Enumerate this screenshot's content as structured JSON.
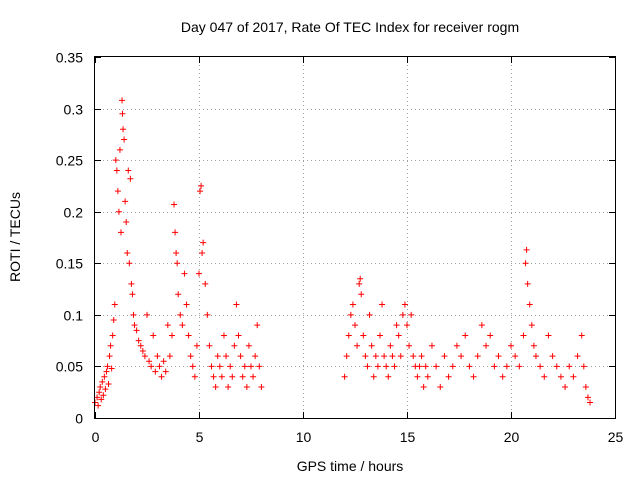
{
  "chart_data": {
    "type": "scatter",
    "title": "Day 047 of 2017, Rate Of TEC Index for receiver rogm",
    "xlabel": "GPS time / hours",
    "ylabel": "ROTI / TECUs",
    "xlim": [
      0,
      25
    ],
    "ylim": [
      0,
      0.35
    ],
    "xticks": [
      0,
      5,
      10,
      15,
      20,
      25
    ],
    "xtick_labels": [
      "0",
      "5",
      "10",
      "15",
      "20",
      "25"
    ],
    "yticks": [
      0,
      0.05,
      0.1,
      0.15,
      0.2,
      0.25,
      0.3,
      0.35
    ],
    "ytick_labels": [
      "0",
      "0.05",
      "0.1",
      "0.15",
      "0.2",
      "0.25",
      "0.3",
      "0.35"
    ],
    "grid": true,
    "marker": "+",
    "color": "#ff0000",
    "series": [
      {
        "name": "ROTI",
        "points": [
          [
            0.0,
            0.015
          ],
          [
            0.1,
            0.02
          ],
          [
            0.15,
            0.012
          ],
          [
            0.2,
            0.025
          ],
          [
            0.25,
            0.03
          ],
          [
            0.3,
            0.018
          ],
          [
            0.35,
            0.035
          ],
          [
            0.4,
            0.022
          ],
          [
            0.45,
            0.04
          ],
          [
            0.5,
            0.028
          ],
          [
            0.55,
            0.045
          ],
          [
            0.6,
            0.05
          ],
          [
            0.65,
            0.033
          ],
          [
            0.7,
            0.06
          ],
          [
            0.75,
            0.07
          ],
          [
            0.8,
            0.048
          ],
          [
            0.85,
            0.08
          ],
          [
            0.9,
            0.095
          ],
          [
            0.95,
            0.11
          ],
          [
            1.0,
            0.25
          ],
          [
            1.05,
            0.24
          ],
          [
            1.1,
            0.22
          ],
          [
            1.15,
            0.2
          ],
          [
            1.2,
            0.26
          ],
          [
            1.25,
            0.18
          ],
          [
            1.3,
            0.308
          ],
          [
            1.32,
            0.295
          ],
          [
            1.35,
            0.28
          ],
          [
            1.4,
            0.27
          ],
          [
            1.45,
            0.21
          ],
          [
            1.5,
            0.19
          ],
          [
            1.55,
            0.16
          ],
          [
            1.6,
            0.24
          ],
          [
            1.65,
            0.15
          ],
          [
            1.7,
            0.232
          ],
          [
            1.75,
            0.13
          ],
          [
            1.8,
            0.12
          ],
          [
            1.85,
            0.1
          ],
          [
            1.9,
            0.09
          ],
          [
            2.0,
            0.085
          ],
          [
            2.1,
            0.075
          ],
          [
            2.2,
            0.07
          ],
          [
            2.3,
            0.065
          ],
          [
            2.4,
            0.06
          ],
          [
            2.5,
            0.1
          ],
          [
            2.6,
            0.055
          ],
          [
            2.7,
            0.05
          ],
          [
            2.8,
            0.08
          ],
          [
            2.9,
            0.045
          ],
          [
            3.0,
            0.06
          ],
          [
            3.1,
            0.05
          ],
          [
            3.2,
            0.04
          ],
          [
            3.3,
            0.055
          ],
          [
            3.4,
            0.045
          ],
          [
            3.5,
            0.09
          ],
          [
            3.6,
            0.06
          ],
          [
            3.7,
            0.08
          ],
          [
            3.8,
            0.207
          ],
          [
            3.85,
            0.18
          ],
          [
            3.9,
            0.16
          ],
          [
            3.95,
            0.15
          ],
          [
            4.0,
            0.12
          ],
          [
            4.1,
            0.1
          ],
          [
            4.2,
            0.09
          ],
          [
            4.3,
            0.14
          ],
          [
            4.4,
            0.11
          ],
          [
            4.5,
            0.08
          ],
          [
            4.6,
            0.06
          ],
          [
            4.7,
            0.05
          ],
          [
            4.8,
            0.04
          ],
          [
            4.9,
            0.07
          ],
          [
            5.0,
            0.14
          ],
          [
            5.05,
            0.22
          ],
          [
            5.1,
            0.225
          ],
          [
            5.15,
            0.16
          ],
          [
            5.2,
            0.17
          ],
          [
            5.3,
            0.13
          ],
          [
            5.4,
            0.1
          ],
          [
            5.5,
            0.07
          ],
          [
            5.6,
            0.05
          ],
          [
            5.7,
            0.04
          ],
          [
            5.8,
            0.03
          ],
          [
            5.9,
            0.06
          ],
          [
            6.0,
            0.05
          ],
          [
            6.1,
            0.04
          ],
          [
            6.2,
            0.08
          ],
          [
            6.3,
            0.06
          ],
          [
            6.4,
            0.03
          ],
          [
            6.5,
            0.05
          ],
          [
            6.6,
            0.04
          ],
          [
            6.7,
            0.07
          ],
          [
            6.8,
            0.11
          ],
          [
            6.9,
            0.08
          ],
          [
            7.0,
            0.06
          ],
          [
            7.1,
            0.04
          ],
          [
            7.2,
            0.05
          ],
          [
            7.3,
            0.03
          ],
          [
            7.4,
            0.07
          ],
          [
            7.5,
            0.05
          ],
          [
            7.6,
            0.04
          ],
          [
            7.7,
            0.06
          ],
          [
            7.8,
            0.09
          ],
          [
            7.9,
            0.05
          ],
          [
            8.0,
            0.03
          ],
          [
            12.0,
            0.04
          ],
          [
            12.1,
            0.06
          ],
          [
            12.2,
            0.08
          ],
          [
            12.3,
            0.1
          ],
          [
            12.4,
            0.11
          ],
          [
            12.5,
            0.09
          ],
          [
            12.6,
            0.07
          ],
          [
            12.7,
            0.13
          ],
          [
            12.75,
            0.135
          ],
          [
            12.8,
            0.12
          ],
          [
            12.9,
            0.08
          ],
          [
            13.0,
            0.06
          ],
          [
            13.1,
            0.05
          ],
          [
            13.2,
            0.1
          ],
          [
            13.3,
            0.07
          ],
          [
            13.4,
            0.04
          ],
          [
            13.5,
            0.06
          ],
          [
            13.6,
            0.05
          ],
          [
            13.7,
            0.08
          ],
          [
            13.8,
            0.11
          ],
          [
            13.9,
            0.06
          ],
          [
            14.0,
            0.05
          ],
          [
            14.1,
            0.04
          ],
          [
            14.2,
            0.07
          ],
          [
            14.3,
            0.06
          ],
          [
            14.4,
            0.05
          ],
          [
            14.5,
            0.09
          ],
          [
            14.6,
            0.08
          ],
          [
            14.7,
            0.06
          ],
          [
            14.8,
            0.1
          ],
          [
            14.9,
            0.11
          ],
          [
            15.0,
            0.09
          ],
          [
            15.1,
            0.07
          ],
          [
            15.2,
            0.1
          ],
          [
            15.3,
            0.06
          ],
          [
            15.4,
            0.05
          ],
          [
            15.5,
            0.04
          ],
          [
            15.6,
            0.05
          ],
          [
            15.7,
            0.06
          ],
          [
            15.8,
            0.03
          ],
          [
            15.9,
            0.05
          ],
          [
            16.0,
            0.04
          ],
          [
            16.2,
            0.07
          ],
          [
            16.4,
            0.05
          ],
          [
            16.6,
            0.03
          ],
          [
            16.8,
            0.06
          ],
          [
            17.0,
            0.04
          ],
          [
            17.2,
            0.05
          ],
          [
            17.4,
            0.07
          ],
          [
            17.6,
            0.06
          ],
          [
            17.8,
            0.08
          ],
          [
            18.0,
            0.05
          ],
          [
            18.2,
            0.04
          ],
          [
            18.4,
            0.06
          ],
          [
            18.6,
            0.09
          ],
          [
            18.8,
            0.07
          ],
          [
            19.0,
            0.08
          ],
          [
            19.2,
            0.05
          ],
          [
            19.4,
            0.06
          ],
          [
            19.6,
            0.04
          ],
          [
            19.8,
            0.05
          ],
          [
            20.0,
            0.07
          ],
          [
            20.2,
            0.06
          ],
          [
            20.4,
            0.05
          ],
          [
            20.6,
            0.08
          ],
          [
            20.7,
            0.15
          ],
          [
            20.75,
            0.163
          ],
          [
            20.8,
            0.13
          ],
          [
            20.9,
            0.11
          ],
          [
            21.0,
            0.09
          ],
          [
            21.1,
            0.07
          ],
          [
            21.2,
            0.06
          ],
          [
            21.4,
            0.05
          ],
          [
            21.6,
            0.04
          ],
          [
            21.8,
            0.08
          ],
          [
            22.0,
            0.06
          ],
          [
            22.2,
            0.05
          ],
          [
            22.4,
            0.04
          ],
          [
            22.6,
            0.03
          ],
          [
            22.8,
            0.05
          ],
          [
            23.0,
            0.04
          ],
          [
            23.2,
            0.06
          ],
          [
            23.4,
            0.08
          ],
          [
            23.5,
            0.05
          ],
          [
            23.6,
            0.03
          ],
          [
            23.7,
            0.02
          ],
          [
            23.8,
            0.015
          ]
        ]
      }
    ]
  }
}
